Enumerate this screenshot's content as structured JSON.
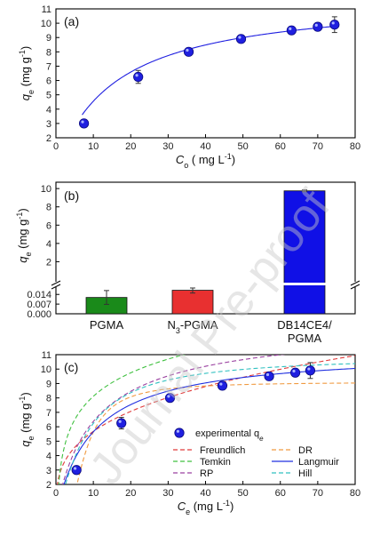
{
  "watermark": "Journal Pre-proof",
  "colors": {
    "marker": "#1f1fe0",
    "bar_pgma": "#1a8a1a",
    "bar_n3": "#e83030",
    "bar_db": "#1010e6",
    "axis": "#000000"
  },
  "chart_data": [
    {
      "panel": "(a)",
      "type": "scatter",
      "xlabel": {
        "main": "C",
        "sub": "o",
        "unit": " ( mg L",
        "sup": "-1",
        "end": ")"
      },
      "ylabel": {
        "main": "q",
        "sub": "e",
        "unit": " (mg g",
        "sup": "-1",
        "end": ")"
      },
      "xlim": [
        0,
        80
      ],
      "ylim": [
        2,
        11
      ],
      "xticks": [
        0,
        10,
        20,
        30,
        40,
        50,
        60,
        70,
        80
      ],
      "yticks": [
        2,
        3,
        4,
        5,
        6,
        7,
        8,
        9,
        10,
        11
      ],
      "points": [
        {
          "x": 7.5,
          "y": 3.0,
          "err": 0.0
        },
        {
          "x": 22,
          "y": 6.25,
          "err": 0.45
        },
        {
          "x": 35.5,
          "y": 8.0,
          "err": 0.1
        },
        {
          "x": 49.5,
          "y": 8.9,
          "err": 0.1
        },
        {
          "x": 63,
          "y": 9.5,
          "err": 0.1
        },
        {
          "x": 70,
          "y": 9.75,
          "err": 0.15
        },
        {
          "x": 74.5,
          "y": 9.9,
          "err": 0.55
        }
      ],
      "fit": {
        "color": "#1f1fe0",
        "qmax": 11.9,
        "k": 0.062,
        "xrange": [
          7,
          75
        ]
      }
    },
    {
      "panel": "(b)",
      "type": "bar",
      "ylabel": {
        "main": "q",
        "sub": "e",
        "unit": " (mg g",
        "sup": "-1",
        "end": ")"
      },
      "categories": [
        {
          "label": "PGMA",
          "value": 0.0118,
          "err": 0.005
        },
        {
          "label_parts": [
            "N",
            "3",
            "-PGMA"
          ],
          "value": 0.017,
          "err": 0.002
        },
        {
          "label_lines": [
            "DB14CE4/",
            "PGMA"
          ],
          "value": 9.75,
          "err": 0.1
        }
      ],
      "upper_yticks": [
        2,
        4,
        6,
        8,
        10
      ],
      "lower_yticks": [
        "0.014",
        "0.007",
        "0.000"
      ],
      "upper_ylim": [
        0,
        10.5
      ],
      "lower_ylim": [
        0,
        0.018
      ]
    },
    {
      "panel": "(c)",
      "type": "scatter",
      "xlabel": {
        "main": "C",
        "sub": "e",
        "unit": " (mg L",
        "sup": "-1",
        "end": ")"
      },
      "ylabel": {
        "main": "q",
        "sub": "e",
        "unit": " (mg g",
        "sup": "-1",
        "end": ")"
      },
      "xlim": [
        0,
        80
      ],
      "ylim": [
        2,
        11
      ],
      "xticks": [
        0,
        10,
        20,
        30,
        40,
        50,
        60,
        70,
        80
      ],
      "yticks": [
        2,
        3,
        4,
        5,
        6,
        7,
        8,
        9,
        10,
        11
      ],
      "points": [
        {
          "x": 5.5,
          "y": 3.0,
          "err": 0.0
        },
        {
          "x": 17.5,
          "y": 6.25,
          "err": 0.4
        },
        {
          "x": 30.5,
          "y": 8.0,
          "err": 0.1
        },
        {
          "x": 44.5,
          "y": 8.85,
          "err": 0.1
        },
        {
          "x": 57,
          "y": 9.5,
          "err": 0.1
        },
        {
          "x": 64,
          "y": 9.75,
          "err": 0.15
        },
        {
          "x": 68,
          "y": 9.9,
          "err": 0.55
        }
      ],
      "legend_point": {
        "text": "experimental q",
        "sub": "e"
      },
      "series": [
        {
          "name": "Freundlich",
          "color": "#e03a3a",
          "dash": "5,3",
          "model": "freundlich",
          "k": 2.75,
          "n": 0.315
        },
        {
          "name": "DR",
          "color": "#f09a40",
          "dash": "5,3",
          "model": "dr",
          "qm": 9.1,
          "b": 48
        },
        {
          "name": "Temkin",
          "color": "#40c040",
          "dash": "5,3",
          "model": "temkin",
          "a": 0.05,
          "b": 2.35,
          "c": 2.7
        },
        {
          "name": "Langmuir",
          "color": "#2030e0",
          "dash": "",
          "model": "langmuir",
          "qmax": 11.3,
          "k": 0.1
        },
        {
          "name": "RP",
          "color": "#9a40a0",
          "dash": "5,3",
          "model": "rp",
          "a": 1.35,
          "b": 0.12,
          "g": 0.97
        },
        {
          "name": "Hill",
          "color": "#30c0c0",
          "dash": "5,3",
          "model": "hill",
          "qmax": 10.9,
          "k": 8.0,
          "n": 1.3
        }
      ]
    }
  ]
}
